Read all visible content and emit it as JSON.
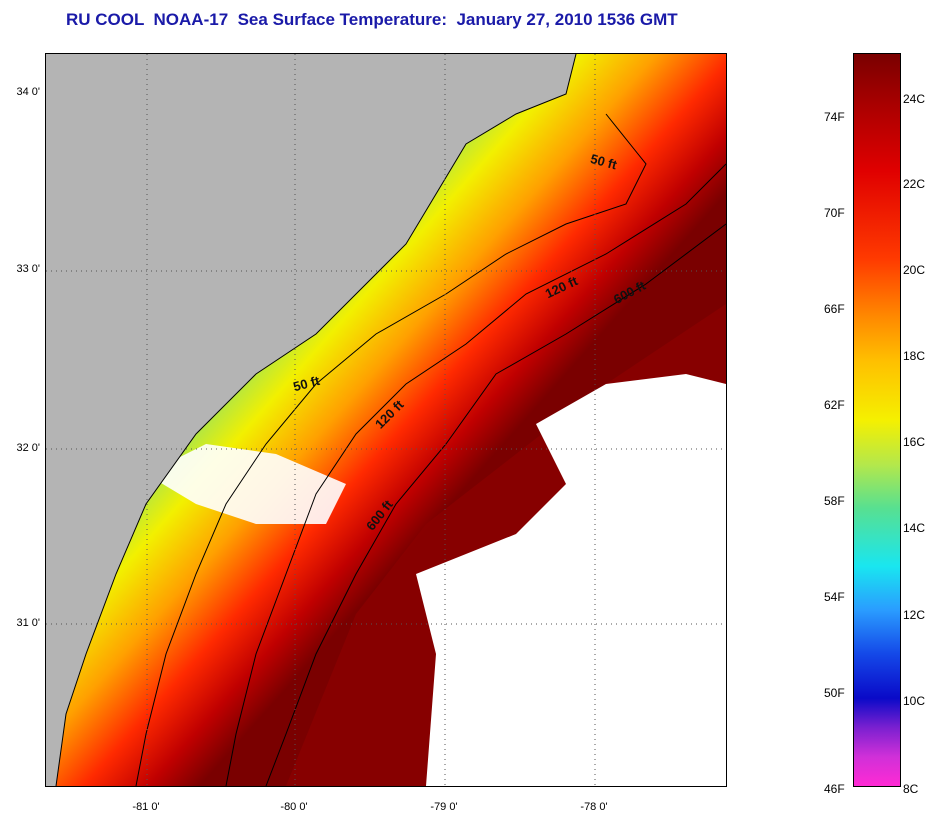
{
  "title": "RU COOL  NOAA-17  Sea Surface Temperature:  January 27, 2010 1536 GMT",
  "lat_labels": [
    "34 0'",
    "33 0'",
    "32 0'",
    "31 0'"
  ],
  "lon_labels": [
    "-81 0'",
    "-80 0'",
    "-79 0'",
    "-78 0'"
  ],
  "contour_labels": {
    "c50_north": "50 ft",
    "c50_south": "50 ft",
    "c120_north": "120 ft",
    "c120_south": "120 ft",
    "c600_north": "600 ft",
    "c600_south": "600 ft"
  },
  "colorbar": {
    "fahrenheit_labels": [
      "74F",
      "70F",
      "66F",
      "62F",
      "58F",
      "54F",
      "50F",
      "46F"
    ],
    "celsius_labels": [
      "24C",
      "22C",
      "20C",
      "18C",
      "16C",
      "14C",
      "12C",
      "10C",
      "8C"
    ]
  },
  "colors": {
    "land": "#b4b4b4",
    "cloud": "#ffffff",
    "title": "#1a1aa8",
    "sst_cold": "#ff2ad4",
    "sst_warm": "#7a0000"
  }
}
